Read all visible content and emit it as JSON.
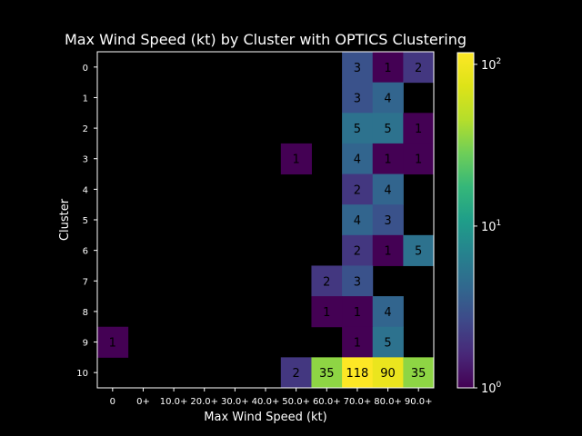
{
  "chart_data": {
    "type": "heatmap",
    "title": "Max Wind Speed (kt) by Cluster with OPTICS Clustering",
    "xlabel": "Max Wind Speed (kt)",
    "ylabel": "Cluster",
    "x_categories": [
      "0",
      "0+",
      "10.0+",
      "20.0+",
      "30.0+",
      "40.0+",
      "50.0+",
      "60.0+",
      "70.0+",
      "80.0+",
      "90.0+"
    ],
    "y_categories": [
      "0",
      "1",
      "2",
      "3",
      "4",
      "5",
      "6",
      "7",
      "8",
      "9",
      "10"
    ],
    "values": [
      [
        null,
        null,
        null,
        null,
        null,
        null,
        null,
        null,
        3,
        1,
        2
      ],
      [
        null,
        null,
        null,
        null,
        null,
        null,
        null,
        null,
        3,
        4,
        null
      ],
      [
        null,
        null,
        null,
        null,
        null,
        null,
        null,
        null,
        5,
        5,
        1
      ],
      [
        null,
        null,
        null,
        null,
        null,
        null,
        1,
        null,
        4,
        1,
        1
      ],
      [
        null,
        null,
        null,
        null,
        null,
        null,
        null,
        null,
        2,
        4,
        null
      ],
      [
        null,
        null,
        null,
        null,
        null,
        null,
        null,
        null,
        4,
        3,
        null
      ],
      [
        null,
        null,
        null,
        null,
        null,
        null,
        null,
        null,
        2,
        1,
        5
      ],
      [
        null,
        null,
        null,
        null,
        null,
        null,
        null,
        2,
        3,
        null,
        null
      ],
      [
        null,
        null,
        null,
        null,
        null,
        null,
        null,
        1,
        1,
        4,
        null
      ],
      [
        1,
        null,
        null,
        null,
        null,
        null,
        null,
        null,
        1,
        5,
        null
      ],
      [
        null,
        null,
        null,
        null,
        null,
        null,
        2,
        35,
        118,
        90,
        35
      ]
    ],
    "colorscale": "viridis",
    "color_scale_type": "log",
    "color_range": [
      1,
      118
    ],
    "colorbar_ticks": [
      {
        "value": 1,
        "base": "10",
        "exp": "0"
      },
      {
        "value": 10,
        "base": "10",
        "exp": "1"
      },
      {
        "value": 100,
        "base": "10",
        "exp": "2"
      }
    ],
    "background": "#000000",
    "grid": false
  }
}
